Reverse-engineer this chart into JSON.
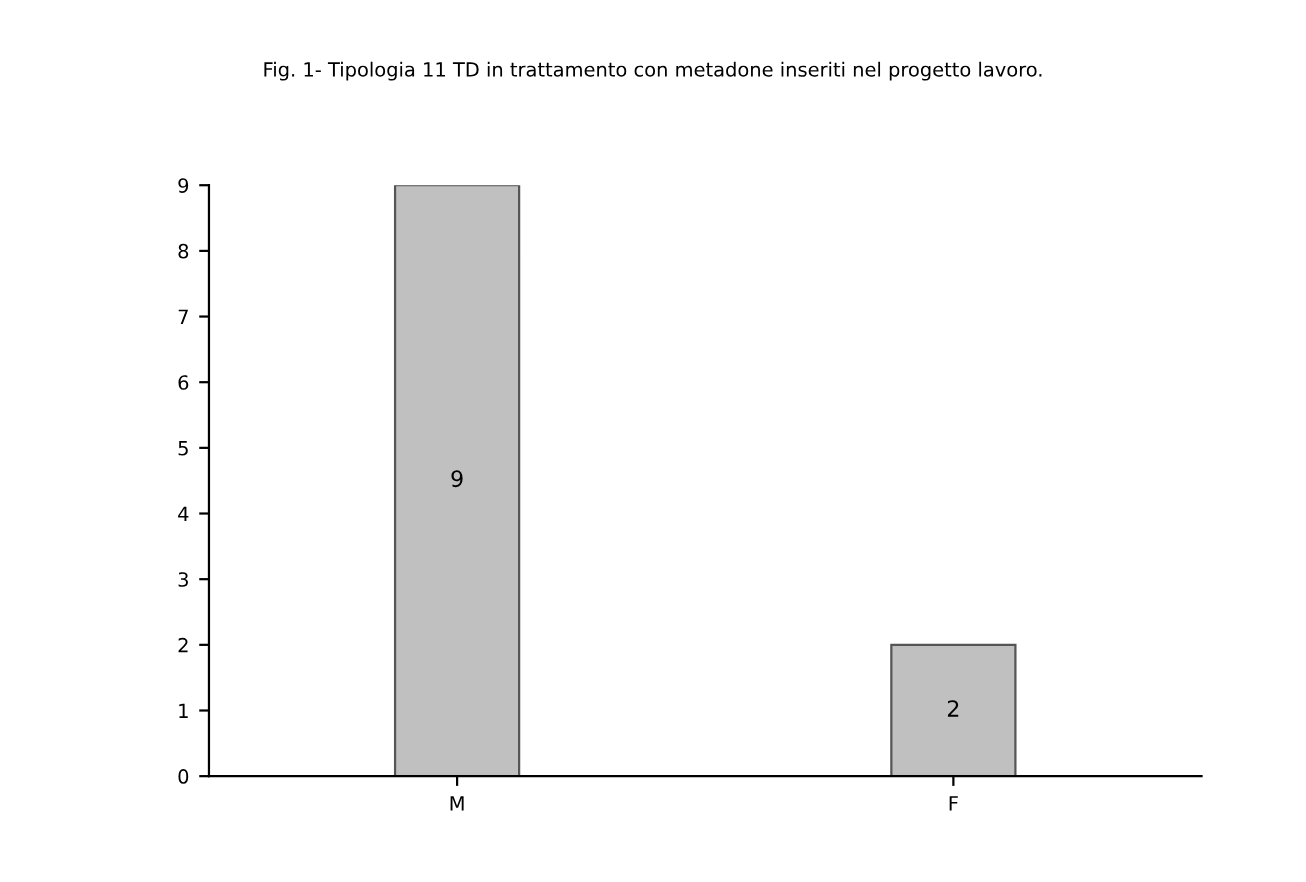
{
  "chart_data": {
    "type": "bar",
    "title": "Fig. 1- Tipologia 11 TD in trattamento con metadone inseriti nel progetto lavoro.",
    "categories": [
      "M",
      "F"
    ],
    "values": [
      9,
      2
    ],
    "color": "#c0c0c0",
    "ylim": [
      0,
      9
    ],
    "yticks": [
      0,
      1,
      2,
      3,
      4,
      5,
      6,
      7,
      8,
      9
    ],
    "grid": false,
    "data_labels": true
  }
}
